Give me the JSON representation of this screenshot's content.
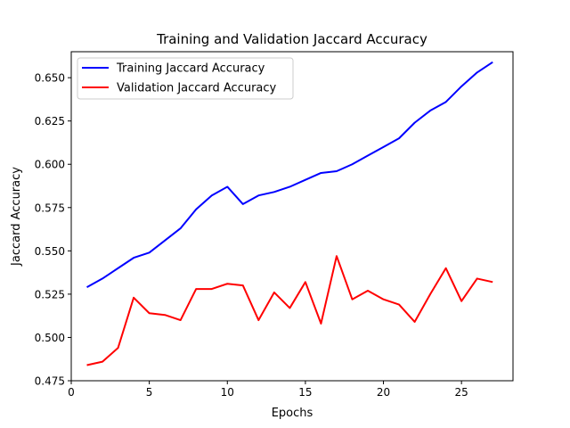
{
  "chart_data": {
    "type": "line",
    "title": "Training and Validation Jaccard Accuracy",
    "xlabel": "Epochs",
    "ylabel": "Jaccard Accuracy",
    "xlim": [
      0,
      28.3
    ],
    "ylim": [
      0.475,
      0.665
    ],
    "xticks": [
      0,
      5,
      10,
      15,
      20,
      25
    ],
    "xtick_labels": [
      "0",
      "5",
      "10",
      "15",
      "20",
      "25"
    ],
    "yticks": [
      0.475,
      0.5,
      0.525,
      0.55,
      0.575,
      0.6,
      0.625,
      0.65
    ],
    "ytick_labels": [
      "0.475",
      "0.500",
      "0.525",
      "0.550",
      "0.575",
      "0.600",
      "0.625",
      "0.650"
    ],
    "grid": false,
    "legend_position": "upper-left",
    "x": [
      1,
      2,
      3,
      4,
      5,
      6,
      7,
      8,
      9,
      10,
      11,
      12,
      13,
      14,
      15,
      16,
      17,
      18,
      19,
      20,
      21,
      22,
      23,
      24,
      25,
      26,
      27
    ],
    "series": [
      {
        "name": "Training Jaccard Accuracy",
        "color": "#0000ff",
        "values": [
          0.529,
          0.534,
          0.54,
          0.546,
          0.549,
          0.556,
          0.563,
          0.574,
          0.582,
          0.587,
          0.577,
          0.582,
          0.584,
          0.587,
          0.591,
          0.595,
          0.596,
          0.6,
          0.605,
          0.61,
          0.615,
          0.624,
          0.631,
          0.636,
          0.645,
          0.653,
          0.659
        ]
      },
      {
        "name": "Validation Jaccard Accuracy",
        "color": "#ff0000",
        "values": [
          0.484,
          0.486,
          0.494,
          0.523,
          0.514,
          0.513,
          0.51,
          0.528,
          0.528,
          0.531,
          0.53,
          0.51,
          0.526,
          0.517,
          0.532,
          0.508,
          0.547,
          0.522,
          0.527,
          0.522,
          0.519,
          0.509,
          0.525,
          0.54,
          0.521,
          0.534,
          0.532
        ]
      }
    ]
  }
}
